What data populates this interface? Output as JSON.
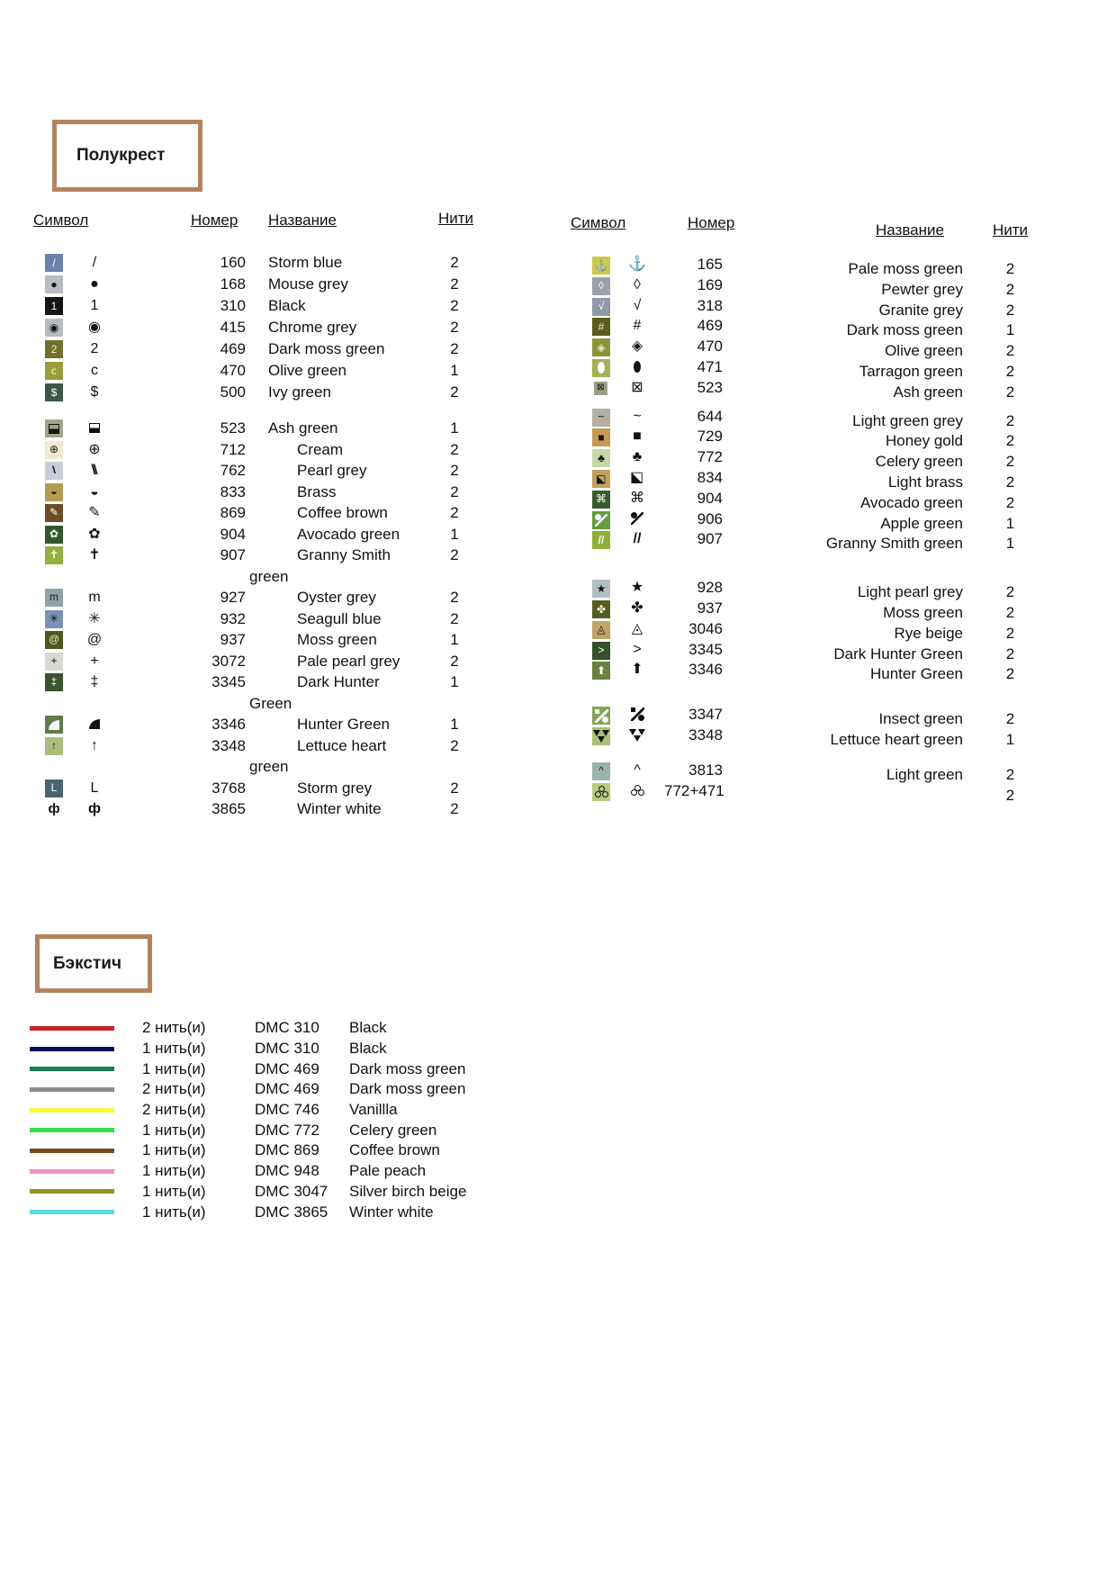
{
  "half_cross": {
    "title": "Полукрест",
    "headers": {
      "symbol": "Символ",
      "number": "Номер",
      "name": "Название",
      "threads": "Нити"
    },
    "left_groups": [
      [
        {
          "sym": "/",
          "icon": "slash",
          "fg": "#ffffff",
          "bg": "#6d82a8",
          "number": "160",
          "name": "Storm blue",
          "indent": "a",
          "threads": "2"
        },
        {
          "sym": "●",
          "icon": "dot",
          "fg": "#111111",
          "bg": "#b9bdc2",
          "number": "168",
          "name": "Mouse grey",
          "indent": "a",
          "threads": "2"
        },
        {
          "sym": "1",
          "icon": "digit-1",
          "fg": "#ffffff",
          "bg": "#161616",
          "number": "310",
          "name": "Black",
          "indent": "a",
          "threads": "2"
        },
        {
          "sym": "◉",
          "icon": "circled-dot",
          "fg": "#111111",
          "bg": "#b8bcbf",
          "number": "415",
          "name": "Chrome grey",
          "indent": "a",
          "threads": "2"
        },
        {
          "sym": "2",
          "icon": "digit-2",
          "fg": "#f2f2dc",
          "bg": "#71702c",
          "number": "469",
          "name": "Dark moss green",
          "indent": "a",
          "threads": "2"
        },
        {
          "sym": "c",
          "icon": "letter-c",
          "fg": "#f2f2dc",
          "bg": "#9a9c39",
          "number": "470",
          "name": "Olive green",
          "indent": "a",
          "threads": "1"
        },
        {
          "sym": "$",
          "icon": "dollar",
          "fg": "#ffffff",
          "bg": "#3c574a",
          "number": "500",
          "name": "Ivy green",
          "indent": "a",
          "threads": "2"
        }
      ],
      [
        {
          "type": "halfsq",
          "icon": "half-square",
          "fg": "#111111",
          "bg": "#a2a489",
          "number": "523",
          "name": "Ash green",
          "indent": "a",
          "threads": "1"
        },
        {
          "sym": "⊕",
          "icon": "circled-plus",
          "fg": "#111111",
          "bg": "#f0ead2",
          "number": "712",
          "name": "Cream",
          "indent": "b",
          "threads": "2"
        },
        {
          "sym": "\\\\\\",
          "icon": "triple-backslash",
          "cls": "slashes",
          "fg": "#111111",
          "bg": "#c9cdd8",
          "number": "762",
          "name": "Pearl grey",
          "indent": "b",
          "threads": "2"
        },
        {
          "sym": "◒",
          "icon": "half-circle",
          "fg": "#111111",
          "bg": "#b29b54",
          "number": "833",
          "name": "Brass",
          "indent": "b",
          "threads": "2"
        },
        {
          "sym": "✎",
          "icon": "pencil",
          "fg": "#ffffff",
          "bg": "#6f4c28",
          "number": "869",
          "name": "Coffee brown",
          "indent": "b",
          "threads": "2"
        },
        {
          "sym": "✿",
          "icon": "flower",
          "fg": "#ffffff",
          "bg": "#33582f",
          "number": "904",
          "name": "Avocado green",
          "indent": "b",
          "threads": "1"
        },
        {
          "sym": "✝",
          "icon": "cross",
          "fg": "#ffffff",
          "bg": "#92b240",
          "number": "907",
          "name": "Granny Smith",
          "name2": "green",
          "indent": "b",
          "threads": "2"
        }
      ],
      [
        {
          "sym": "m",
          "icon": "letter-m",
          "fg": "#222222",
          "bg": "#90a1a8",
          "number": "927",
          "name": "Oyster grey",
          "indent": "b",
          "threads": "2"
        },
        {
          "sym": "✳",
          "icon": "asterisk",
          "fg": "#111111",
          "bg": "#7b92b4",
          "number": "932",
          "name": "Seagull blue",
          "indent": "b",
          "threads": "2"
        },
        {
          "sym": "@",
          "icon": "spiral-at",
          "fg": "#eeeed8",
          "bg": "#50571f",
          "number": "937",
          "name": "Moss green",
          "indent": "b",
          "threads": "1"
        },
        {
          "sym": "+",
          "icon": "plus",
          "fg": "#111111",
          "bg": "#d6d9d3",
          "number": "3072",
          "name": "Pale pearl grey",
          "indent": "b",
          "threads": "2"
        },
        {
          "sym": "‡",
          "icon": "double-dagger",
          "fg": "#ffffff",
          "bg": "#3a5330",
          "number": "3345",
          "name": "Dark Hunter",
          "name2": "Green",
          "indent": "b",
          "threads": "1"
        }
      ],
      [
        {
          "type": "quarter",
          "icon": "quarter-disc",
          "fg": "#f5f5f5",
          "bg": "#5f7c49",
          "number": "3346",
          "name": "Hunter Green",
          "indent": "b",
          "threads": "1"
        },
        {
          "sym": "↑",
          "icon": "arrow-up",
          "fg": "#222222",
          "bg": "#a9bd7d",
          "number": "3348",
          "name": "Lettuce heart",
          "name2": "green",
          "indent": "b",
          "threads": "2"
        }
      ],
      [
        {
          "sym": "L",
          "icon": "letter-l",
          "fg": "#ffffff",
          "bg": "#4c6472",
          "number": "3768",
          "name": "Storm grey",
          "indent": "b",
          "threads": "2"
        },
        {
          "sym": "ф",
          "icon": "phi",
          "cls": "bold",
          "fg": "#111111",
          "bg": "",
          "number": "3865",
          "name": "Winter white",
          "indent": "b",
          "threads": "2"
        }
      ]
    ],
    "right_groups": [
      [
        {
          "sym": "⚓",
          "icon": "anchor",
          "fg": "#111111",
          "bg": "#cbc94a",
          "number": "165",
          "name": "Pale moss green",
          "threads": "2"
        },
        {
          "sym": "◊",
          "icon": "lens",
          "fg": "#ffffff",
          "bg": "#99a1ab",
          "number": "169",
          "name": "Pewter grey",
          "threads": "2"
        },
        {
          "sym": "√",
          "icon": "check-radical",
          "fg": "#ffffff",
          "bg": "#8c9aa9",
          "number": "318",
          "name": "Granite grey",
          "threads": "2"
        },
        {
          "sym": "#",
          "icon": "hash",
          "fg": "#e9e9c8",
          "bg": "#5a5d1d",
          "number": "469",
          "name": "Dark moss green",
          "threads": "1"
        },
        {
          "sym": "◈",
          "icon": "diamond-cross",
          "fg": "#eef0c8",
          "bg": "#8d9438",
          "number": "470",
          "name": "Olive green",
          "threads": "2"
        },
        {
          "type": "ellipse",
          "icon": "vertical-ellipse",
          "fg": "#ffffff",
          "bg": "#a7b156",
          "number": "471",
          "name": "Tarragon green",
          "threads": "2"
        },
        {
          "sym": "⊠",
          "icon": "boxed-x",
          "fg": "#111111",
          "bg": "#99a086",
          "sq": "sm",
          "number": "523",
          "name": "Ash green",
          "threads": "2"
        }
      ],
      [
        {
          "sym": "~",
          "icon": "tilde",
          "fg": "#111111",
          "bg": "#b3b1a2",
          "number": "644",
          "name": "Light green grey",
          "threads": "2"
        },
        {
          "sym": "■",
          "icon": "filled-square",
          "fg": "#20130a",
          "bg": "#c29a52",
          "number": "729",
          "name": "Honey gold",
          "threads": "2"
        },
        {
          "sym": "♣",
          "icon": "club",
          "fg": "#111111",
          "bg": "#c5d8a8",
          "number": "772",
          "name": "Celery green",
          "threads": "2"
        },
        {
          "sym": "◪",
          "icon": "half-diagonal-square",
          "cls": "flipx",
          "fg": "#111111",
          "bg": "#c3a05c",
          "number": "834",
          "name": "Light brass",
          "threads": "2"
        },
        {
          "sym": "⌘",
          "icon": "command",
          "fg": "#ffffff",
          "bg": "#3c5a31",
          "number": "904",
          "name": "Avocado green",
          "threads": "2"
        },
        {
          "type": "pin",
          "icon": "pin",
          "fg": "#ffffff",
          "bg": "#639d3e",
          "number": "906",
          "name": "Apple green",
          "threads": "1"
        },
        {
          "sym": "//",
          "icon": "double-slash",
          "cls": "bold",
          "fg": "#ffffff",
          "bg": "#8fb13b",
          "number": "907",
          "name": "Granny Smith green",
          "threads": "1"
        }
      ],
      [
        {
          "sym": "★",
          "icon": "star",
          "fg": "#111111",
          "bg": "#b0bfc2",
          "number": "928",
          "name": "Light pearl grey",
          "threads": "2"
        },
        {
          "sym": "✤",
          "icon": "pinwheel",
          "fg": "#f0f0e0",
          "bg": "#565e24",
          "number": "937",
          "name": "Moss green",
          "threads": "2"
        },
        {
          "sym": "◬",
          "icon": "triangle-dot",
          "fg": "#111111",
          "bg": "#c0a266",
          "number": "3046",
          "name": "Rye beige",
          "threads": "2"
        },
        {
          "sym": ">",
          "icon": "chevron-right",
          "fg": "#ffffff",
          "bg": "#32512c",
          "number": "3345",
          "name": "Dark Hunter Green",
          "threads": "2"
        },
        {
          "sym": "⬆",
          "icon": "bold-arrow-up",
          "fg": "#ffffff",
          "bg": "#68823f",
          "number": "3346",
          "name": "Hunter Green",
          "threads": "2"
        }
      ],
      [
        {
          "type": "link",
          "icon": "link-dots",
          "fg": "#ffffff",
          "bg": "#82a556",
          "number": "3347",
          "name": "Insect green",
          "threads": "2"
        },
        {
          "type": "tri3",
          "icon": "three-triangles",
          "fg": "#111111",
          "bg": "#aabf74",
          "number": "3348",
          "name": "Lettuce heart green",
          "threads": "1"
        }
      ],
      [
        {
          "sym": "^",
          "icon": "caret",
          "fg": "#17201d",
          "bg": "#9cb4ab",
          "number": "3813",
          "name": "Light green",
          "threads": "2"
        },
        {
          "type": "trefoil",
          "icon": "trefoil",
          "fg": "#111111",
          "bg": "#b8c981",
          "number": "772+471",
          "name": "",
          "threads": "2"
        }
      ]
    ]
  },
  "backstitch": {
    "title": "Бэкстич",
    "rows": [
      {
        "color": "#c9232a",
        "threads": "2 нить(и)",
        "code": "DMC 310",
        "name": "Black"
      },
      {
        "color": "#0a0a5a",
        "threads": "1 нить(и)",
        "code": "DMC 310",
        "name": "Black"
      },
      {
        "color": "#1e7d50",
        "threads": "1 нить(и)",
        "code": "DMC 469",
        "name": "Dark moss green"
      },
      {
        "color": "#8c8c8c",
        "threads": "2 нить(и)",
        "code": "DMC 469",
        "name": "Dark moss green"
      },
      {
        "color": "#f8f83a",
        "threads": "2 нить(и)",
        "code": "DMC 746",
        "name": "Vanillla"
      },
      {
        "color": "#33e045",
        "threads": "1 нить(и)",
        "code": "DMC 772",
        "name": "Celery green"
      },
      {
        "color": "#7b4a21",
        "threads": "1 нить(и)",
        "code": "DMC 869",
        "name": "Coffee brown"
      },
      {
        "color": "#f090c0",
        "threads": "1 нить(и)",
        "code": "DMC 948",
        "name": "Pale peach"
      },
      {
        "color": "#968f22",
        "threads": "1 нить(и)",
        "code": "DMC 3047",
        "name": "Silver birch beige"
      },
      {
        "color": "#55dce8",
        "threads": "1 нить(и)",
        "code": "DMC 3865",
        "name": "Winter white"
      }
    ]
  }
}
